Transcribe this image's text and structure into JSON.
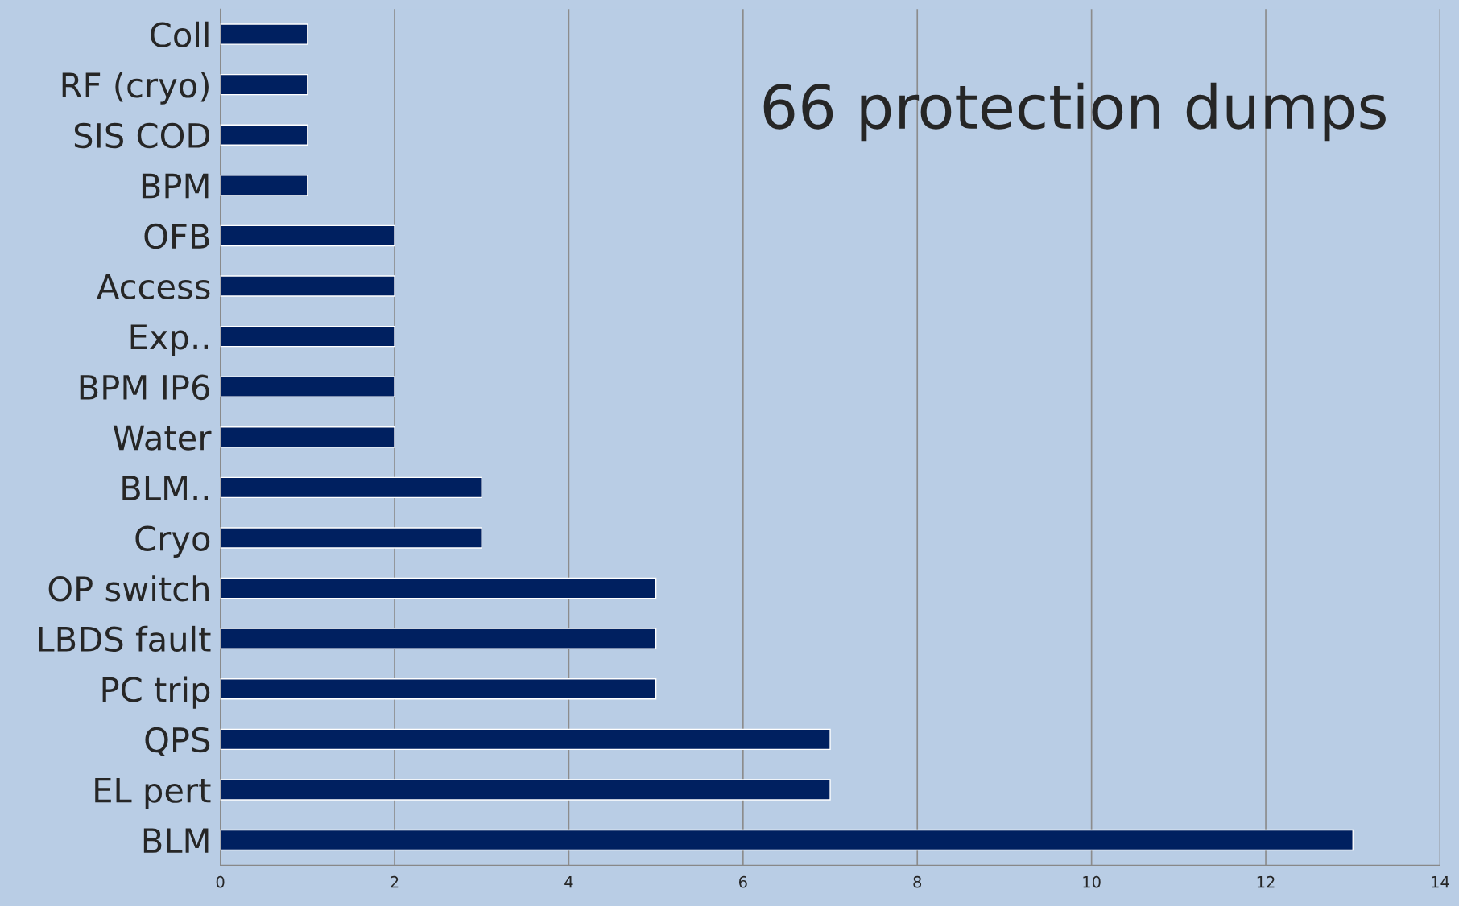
{
  "chart_data": {
    "type": "bar",
    "orientation": "horizontal",
    "categories": [
      "Coll",
      "RF (cryo)",
      "SIS COD",
      "BPM",
      "OFB",
      "Access",
      "Exp..",
      "BPM IP6",
      "Water",
      "BLM..",
      "Cryo",
      "OP switch",
      "LBDS fault",
      "PC trip",
      "QPS",
      "EL pert",
      "BLM"
    ],
    "values": [
      1,
      1,
      1,
      1,
      2,
      2,
      2,
      2,
      2,
      3,
      3,
      5,
      5,
      5,
      7,
      7,
      13
    ],
    "color": "#002060",
    "xlim": [
      0,
      14
    ],
    "xticks": [
      0,
      2,
      4,
      6,
      8,
      10,
      12,
      14
    ],
    "grid": "x",
    "annotations": [
      "66 protection dumps"
    ]
  }
}
